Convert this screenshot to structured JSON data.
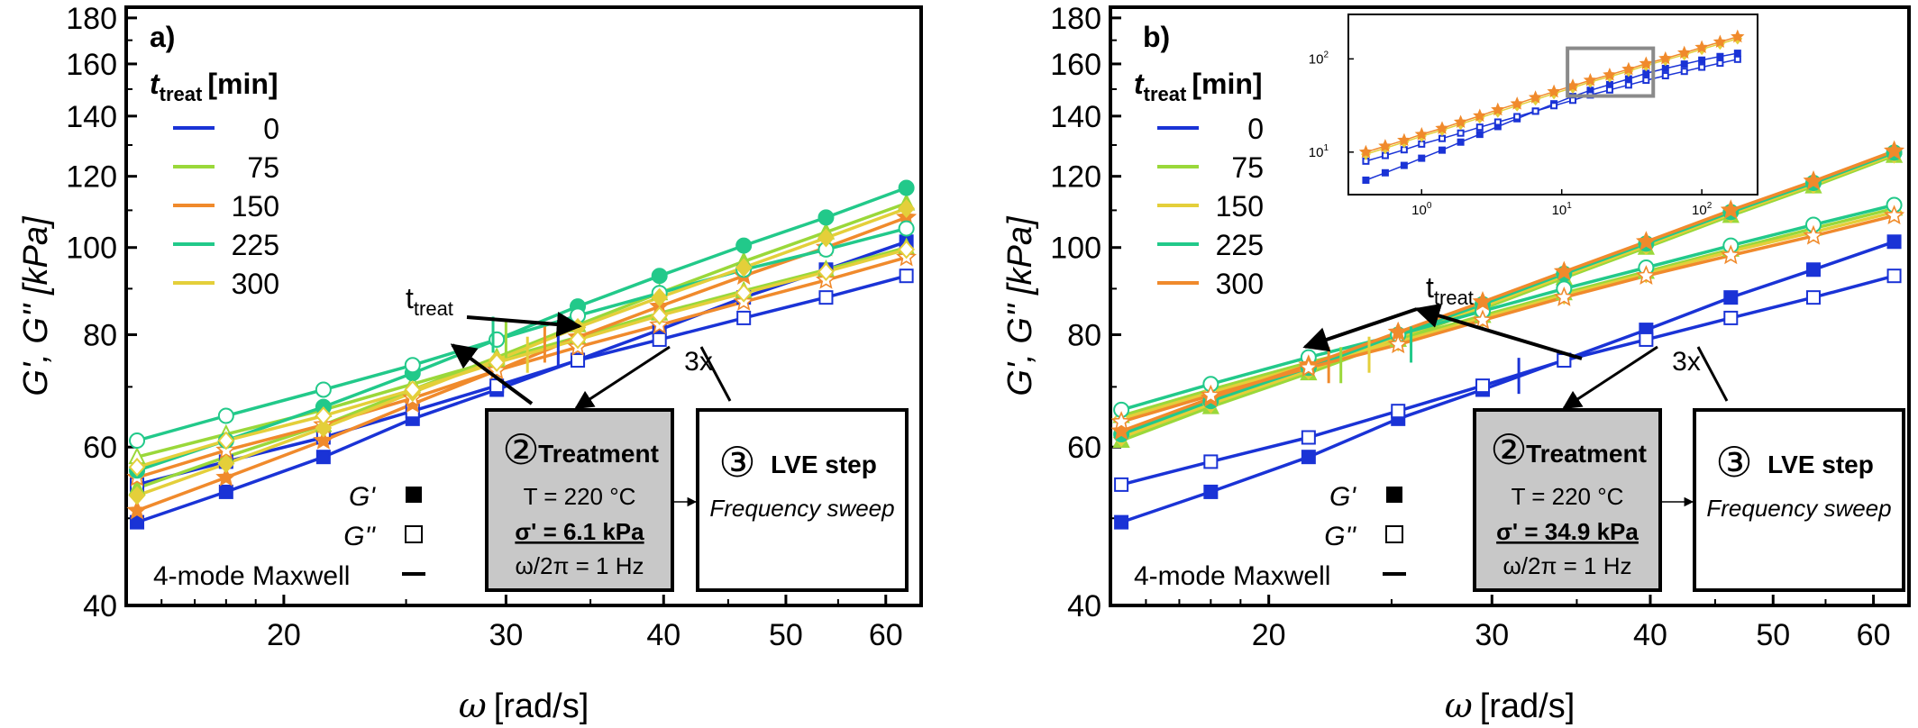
{
  "colors": {
    "t0": "#1a33d6",
    "t75": "#9ad83a",
    "t150a": "#f08a2c",
    "t150b": "#e4cf3a",
    "t225": "#22c98a",
    "t300a": "#e4cf3a",
    "t300b": "#f08a2c",
    "box_grey": "#c8c8c8",
    "inset_box": "#8a8a8a"
  },
  "chart_data": [
    {
      "panel_label": "a)",
      "type": "line",
      "scale": "log-log",
      "xlabel_symbol": "ω",
      "xlabel_unit": "[rad/s]",
      "ylabel": "G', G'' [kPa]",
      "xlim": [
        15,
        64
      ],
      "ylim": [
        40,
        185
      ],
      "xticks": [
        20,
        30,
        40,
        50,
        60
      ],
      "yticks": [
        40,
        60,
        80,
        100,
        120,
        140,
        160,
        180
      ],
      "legend_title_italic": "t",
      "legend_title_sub": "treat",
      "legend_title_unit": "[min]",
      "legend": [
        {
          "label": "0",
          "color_key": "t0"
        },
        {
          "label": "75",
          "color_key": "t75"
        },
        {
          "label": "150",
          "color_key": "t150a"
        },
        {
          "label": "225",
          "color_key": "t225"
        },
        {
          "label": "300",
          "color_key": "t300a"
        }
      ],
      "x": [
        15.3,
        18.0,
        21.5,
        25.3,
        29.5,
        34.2,
        39.7,
        46.3,
        53.8,
        62.3
      ],
      "series": [
        {
          "t": 0,
          "color_key": "t0",
          "marker": "square",
          "Gp": [
            49.5,
            53.5,
            58.5,
            64.5,
            69.5,
            75.0,
            81.0,
            88.0,
            94.5,
            101.5
          ],
          "Gpp": [
            54.5,
            57.8,
            61.5,
            65.8,
            70.2,
            74.9,
            79.0,
            83.5,
            88.0,
            93.0
          ]
        },
        {
          "t": 75,
          "color_key": "t75",
          "marker": "triangle",
          "Gp": [
            54.0,
            58.5,
            63.5,
            69.5,
            75.5,
            82.0,
            89.0,
            96.5,
            104.0,
            112.0
          ],
          "Gpp": [
            58.5,
            62.0,
            66.0,
            70.5,
            75.0,
            79.5,
            84.5,
            89.5,
            94.5,
            100.0
          ]
        },
        {
          "t": 150,
          "color_key": "t150a",
          "marker": "star",
          "Gp": [
            51.0,
            55.5,
            61.0,
            67.0,
            73.0,
            79.5,
            86.0,
            93.0,
            100.0,
            108.0
          ],
          "Gpp": [
            55.5,
            59.5,
            63.5,
            68.0,
            73.0,
            77.5,
            82.0,
            87.0,
            92.0,
            97.5
          ]
        },
        {
          "t": 225,
          "color_key": "t225",
          "marker": "circle",
          "Gp": [
            56.5,
            61.0,
            66.5,
            72.5,
            79.0,
            86.0,
            93.0,
            100.5,
            108.0,
            116.5
          ],
          "Gpp": [
            61.0,
            65.0,
            69.5,
            74.0,
            79.0,
            84.0,
            89.0,
            94.5,
            99.5,
            105.0
          ]
        },
        {
          "t": 300,
          "color_key": "t300a",
          "marker": "diamond",
          "Gp": [
            53.0,
            57.5,
            63.0,
            69.0,
            75.0,
            81.5,
            88.0,
            95.0,
            102.5,
            110.5
          ],
          "Gpp": [
            57.0,
            61.0,
            65.0,
            69.5,
            74.5,
            79.0,
            84.0,
            89.0,
            94.0,
            99.5
          ]
        }
      ],
      "crossover_ticks": [
        {
          "x": 33.0,
          "y": 77,
          "color_key": "t0"
        },
        {
          "x": 31.2,
          "y": 76,
          "color_key": "t300a"
        },
        {
          "x": 32.2,
          "y": 78,
          "color_key": "t150a"
        },
        {
          "x": 30.0,
          "y": 79,
          "color_key": "t75"
        },
        {
          "x": 29.3,
          "y": 80,
          "color_key": "t225"
        }
      ],
      "arrow_label_main": "t",
      "arrow_label_sub": "treat",
      "markers_legend": [
        {
          "label": "G'",
          "marker": "filled-square"
        },
        {
          "label": "G''",
          "marker": "open-square"
        },
        {
          "label": "4-mode Maxwell",
          "marker": "line"
        }
      ],
      "treatment_box": {
        "number": "②",
        "title": "Treatment",
        "temp": "T = 220 °C",
        "stress": "σ' = 6.1 kPa",
        "freq": "ω/2π = 1 Hz"
      },
      "repeat_label": "3x",
      "lve_box": {
        "number": "③",
        "title": "LVE step",
        "subtitle": "Frequency sweep"
      }
    },
    {
      "panel_label": "b)",
      "type": "line",
      "scale": "log-log",
      "xlabel_symbol": "ω",
      "xlabel_unit": "[rad/s]",
      "ylabel": "G', G'' [kPa]",
      "xlim": [
        15,
        64
      ],
      "ylim": [
        40,
        185
      ],
      "xticks": [
        20,
        30,
        40,
        50,
        60
      ],
      "yticks": [
        40,
        60,
        80,
        100,
        120,
        140,
        160,
        180
      ],
      "legend_title_italic": "t",
      "legend_title_sub": "treat",
      "legend_title_unit": "[min]",
      "legend": [
        {
          "label": "0",
          "color_key": "t0"
        },
        {
          "label": "75",
          "color_key": "t75"
        },
        {
          "label": "150",
          "color_key": "t150b"
        },
        {
          "label": "225",
          "color_key": "t225"
        },
        {
          "label": "300",
          "color_key": "t300b"
        }
      ],
      "x": [
        15.3,
        18.0,
        21.5,
        25.3,
        29.5,
        34.2,
        39.7,
        46.3,
        53.8,
        62.3
      ],
      "series": [
        {
          "t": 0,
          "color_key": "t0",
          "marker": "square",
          "Gp": [
            49.5,
            53.5,
            58.5,
            64.5,
            69.5,
            75.0,
            81.0,
            88.0,
            94.5,
            101.5
          ],
          "Gpp": [
            54.5,
            57.8,
            61.5,
            65.8,
            70.2,
            74.9,
            79.0,
            83.5,
            88.0,
            93.0
          ]
        },
        {
          "t": 75,
          "color_key": "t75",
          "marker": "triangle",
          "Gp": [
            61.0,
            66.5,
            72.5,
            79.0,
            85.5,
            92.5,
            100.0,
            108.5,
            117.0,
            126.5
          ],
          "Gpp": [
            65.0,
            69.5,
            74.5,
            79.0,
            84.0,
            89.0,
            94.0,
            99.5,
            105.0,
            110.5
          ]
        },
        {
          "t": 150,
          "color_key": "t150b",
          "marker": "diamond",
          "Gp": [
            61.5,
            67.0,
            73.0,
            79.5,
            86.0,
            93.0,
            100.5,
            109.0,
            117.5,
            127.0
          ],
          "Gpp": [
            64.5,
            69.0,
            74.0,
            78.5,
            83.5,
            88.5,
            93.5,
            99.0,
            104.0,
            109.5
          ]
        },
        {
          "t": 225,
          "color_key": "t225",
          "marker": "circle",
          "Gp": [
            62.0,
            67.5,
            73.5,
            80.0,
            86.5,
            93.5,
            101.0,
            109.5,
            118.0,
            127.5
          ],
          "Gpp": [
            66.0,
            70.5,
            75.5,
            80.0,
            85.0,
            90.0,
            95.0,
            100.5,
            106.0,
            111.5
          ]
        },
        {
          "t": 300,
          "color_key": "t300b",
          "marker": "star",
          "Gp": [
            62.5,
            68.0,
            74.0,
            80.5,
            87.0,
            94.0,
            101.5,
            110.0,
            118.5,
            128.0
          ],
          "Gpp": [
            64.0,
            68.5,
            73.5,
            78.0,
            83.0,
            88.0,
            93.0,
            98.0,
            103.0,
            108.5
          ]
        }
      ],
      "crossover_ticks": [
        {
          "x": 31.5,
          "y": 72,
          "color_key": "t0"
        },
        {
          "x": 22.8,
          "y": 74,
          "color_key": "t75"
        },
        {
          "x": 22.3,
          "y": 74,
          "color_key": "t300b"
        },
        {
          "x": 24.0,
          "y": 76,
          "color_key": "t150b"
        },
        {
          "x": 25.9,
          "y": 78,
          "color_key": "t225"
        }
      ],
      "arrow_label_main": "t",
      "arrow_label_sub": "treat",
      "markers_legend": [
        {
          "label": "G'",
          "marker": "filled-square"
        },
        {
          "label": "G''",
          "marker": "open-square"
        },
        {
          "label": "4-mode Maxwell",
          "marker": "line"
        }
      ],
      "treatment_box": {
        "number": "②",
        "title": "Treatment",
        "temp": "T = 220 °C",
        "stress": "σ' = 34.9 kPa",
        "freq": "ω/2π = 1 Hz"
      },
      "repeat_label": "3x",
      "lve_box": {
        "number": "③",
        "title": "LVE step",
        "subtitle": "Frequency sweep"
      },
      "inset": {
        "scale": "log-log",
        "xlim": [
          0.3,
          250
        ],
        "ylim": [
          3.5,
          300
        ],
        "xtick_exponents": [
          0,
          1,
          2
        ],
        "ytick_exponents": [
          1,
          2
        ],
        "x": [
          0.4,
          0.55,
          0.75,
          1.0,
          1.4,
          1.9,
          2.6,
          3.5,
          4.8,
          6.5,
          8.8,
          12,
          16,
          22,
          30,
          40,
          55,
          75,
          100,
          135,
          180
        ],
        "series": [
          {
            "color_key": "t0",
            "marker": "square",
            "values": [
              5.0,
              6.0,
              7.2,
              8.6,
              10.5,
              12.8,
              15.5,
              18.8,
              22.8,
              27.5,
              33.0,
              39.5,
              46.0,
              53.0,
              61.0,
              70.0,
              79.0,
              88.0,
              97.0,
              106.0,
              115.0
            ]
          },
          {
            "color_key": "t0",
            "marker": "open-square",
            "values": [
              8.0,
              9.2,
              10.6,
              12.2,
              14.0,
              16.0,
              18.5,
              21.0,
              24.0,
              27.5,
              31.5,
              36.0,
              41.0,
              46.5,
              52.5,
              59.0,
              66.0,
              73.5,
              81.5,
              90.0,
              99.0
            ]
          },
          {
            "color_key": "t150b",
            "marker": "diamond",
            "values": [
              9.5,
              11.0,
              12.8,
              14.8,
              17.2,
              20.0,
              23.3,
              27.0,
              31.5,
              36.5,
              42.5,
              49.0,
              56.5,
              64.5,
              74.0,
              85.0,
              97.0,
              111.0,
              127.0,
              145.0,
              165.0
            ]
          },
          {
            "color_key": "t300b",
            "marker": "star",
            "values": [
              10.0,
              11.6,
              13.4,
              15.5,
              18.0,
              21.0,
              24.5,
              28.5,
              33.0,
              38.5,
              44.5,
              51.5,
              59.0,
              67.5,
              77.5,
              89.0,
              101.0,
              116.0,
              133.0,
              152.0,
              173.0
            ]
          }
        ],
        "zoom_box": {
          "xlim": [
            11,
            45
          ],
          "ylim": [
            40,
            130
          ]
        }
      }
    }
  ]
}
